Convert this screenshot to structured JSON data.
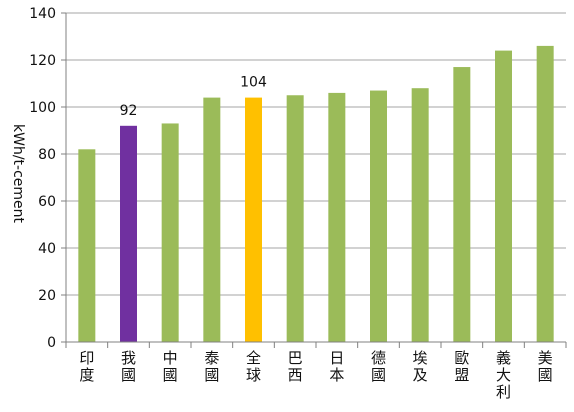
{
  "chart_data": {
    "type": "bar",
    "title": "",
    "xlabel": "",
    "ylabel": "kWh/t-cement",
    "ylim": [
      0,
      140
    ],
    "ytick_step": 20,
    "grid": true,
    "legend": "none",
    "categories": [
      "印度",
      "我國",
      "中國",
      "泰國",
      "全球",
      "巴西",
      "日本",
      "德國",
      "埃及",
      "歐盟",
      "義大利",
      "美國"
    ],
    "values": [
      82,
      92,
      93,
      104,
      104,
      105,
      106,
      107,
      108,
      117,
      124,
      126
    ],
    "data_labels": [
      null,
      "92",
      null,
      null,
      "104",
      null,
      null,
      null,
      null,
      null,
      null,
      null
    ],
    "colors": {
      "default": "#9BBB59",
      "我國": "#7030A0",
      "全球": "#FFC000"
    }
  }
}
